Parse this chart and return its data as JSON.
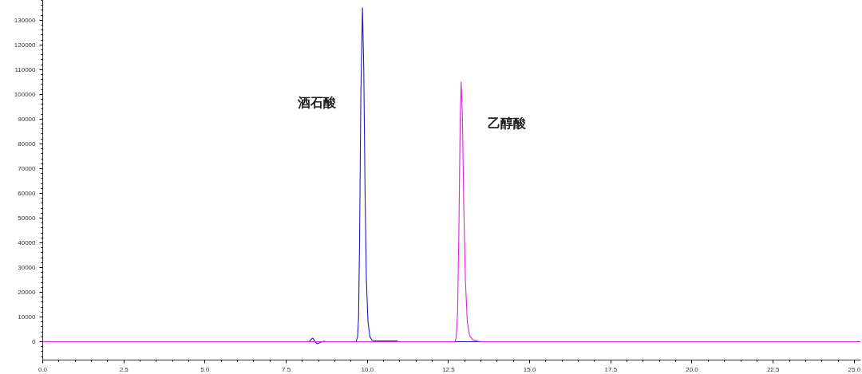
{
  "chart_data": {
    "type": "line",
    "series": [
      {
        "color": "#1a1acc",
        "x": [
          0,
          8.2,
          8.27,
          8.32,
          8.38,
          8.45,
          8.55,
          8.65,
          8.75,
          9.65,
          9.7,
          9.73,
          9.76,
          9.8,
          9.85,
          9.89,
          9.93,
          9.97,
          10.02,
          10.08,
          10.15,
          10.3,
          10.9,
          10.95,
          13.6
        ],
        "values": [
          0,
          0,
          1000,
          1500,
          300,
          -800,
          -300,
          200,
          0,
          0,
          2000,
          10000,
          40000,
          100000,
          135000,
          110000,
          60000,
          25000,
          8000,
          2000,
          500,
          300,
          300,
          0,
          0
        ]
      },
      {
        "color": "#e020e0",
        "x": [
          0,
          12.7,
          12.74,
          12.78,
          12.82,
          12.86,
          12.89,
          12.93,
          12.97,
          13.02,
          13.08,
          13.15,
          13.25,
          13.4,
          13.55,
          25.2
        ],
        "values": [
          0,
          0,
          2000,
          12000,
          45000,
          90000,
          105000,
          90000,
          55000,
          25000,
          8000,
          2500,
          800,
          200,
          0,
          0
        ]
      }
    ],
    "annotations": [
      "酒石酸",
      "乙醇酸"
    ],
    "xlim": [
      0,
      25.2
    ],
    "ylim": [
      -7400,
      138000
    ],
    "xticks": [
      {
        "value": 0,
        "label": "0.0"
      },
      {
        "value": 2.5,
        "label": "2.5"
      },
      {
        "value": 5,
        "label": "5.0"
      },
      {
        "value": 7.5,
        "label": "7.5"
      },
      {
        "value": 10,
        "label": "10.0"
      },
      {
        "value": 12.5,
        "label": "12.5"
      },
      {
        "value": 15,
        "label": "15.0"
      },
      {
        "value": 17.5,
        "label": "17.5"
      },
      {
        "value": 20,
        "label": "20.0"
      },
      {
        "value": 22.5,
        "label": "22.5"
      },
      {
        "value": 25,
        "label": "25.0"
      }
    ],
    "yticks": [
      0,
      10000,
      20000,
      30000,
      40000,
      50000,
      60000,
      70000,
      80000,
      90000,
      100000,
      110000,
      120000,
      130000
    ],
    "grid": false,
    "line_style": "solid",
    "marker": "none"
  }
}
